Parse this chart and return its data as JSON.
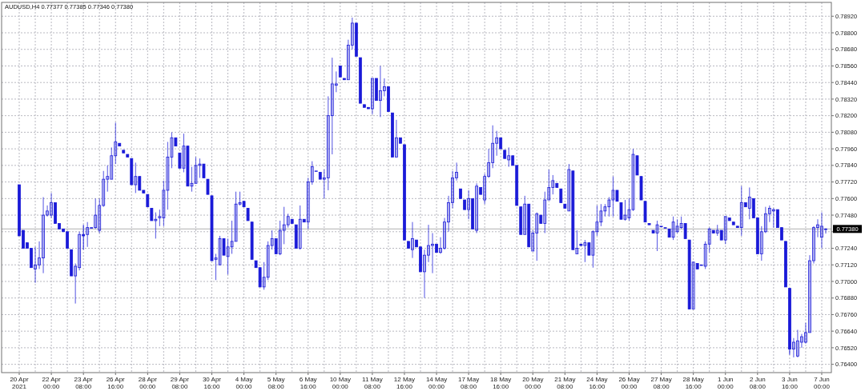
{
  "chart_data": {
    "type": "candlestick",
    "title": "AUDUSD,H4 0.77377 0.77385 0.77346 0.77380",
    "categories": [
      "20 Apr 2021",
      null,
      null,
      null,
      null,
      null,
      null,
      null,
      "22 Apr 00:00",
      null,
      null,
      null,
      null,
      null,
      null,
      null,
      "23 Apr 08:00",
      null,
      null,
      null,
      null,
      null,
      null,
      null,
      "26 Apr 16:00",
      null,
      null,
      null,
      null,
      null,
      null,
      null,
      "28 Apr 00:00",
      null,
      null,
      null,
      null,
      null,
      null,
      null,
      "29 Apr 08:00",
      null,
      null,
      null,
      null,
      null,
      null,
      null,
      "30 Apr 16:00",
      null,
      null,
      null,
      null,
      null,
      null,
      null,
      "4 May 00:00",
      null,
      null,
      null,
      null,
      null,
      null,
      null,
      "5 May 08:00",
      null,
      null,
      null,
      null,
      null,
      null,
      null,
      "6 May 16:00",
      null,
      null,
      null,
      null,
      null,
      null,
      null,
      "10 May 00:00",
      null,
      null,
      null,
      null,
      null,
      null,
      null,
      "11 May 08:00",
      null,
      null,
      null,
      null,
      null,
      null,
      null,
      "12 May 16:00",
      null,
      null,
      null,
      null,
      null,
      null,
      null,
      "14 May 00:00",
      null,
      null,
      null,
      null,
      null,
      null,
      null,
      "17 May 08:00",
      null,
      null,
      null,
      null,
      null,
      null,
      null,
      "18 May 16:00",
      null,
      null,
      null,
      null,
      null,
      null,
      null,
      "20 May 00:00",
      null,
      null,
      null,
      null,
      null,
      null,
      null,
      "21 May 08:00",
      null,
      null,
      null,
      null,
      null,
      null,
      null,
      "24 May 16:00",
      null,
      null,
      null,
      null,
      null,
      null,
      null,
      "26 May 00:00",
      null,
      null,
      null,
      null,
      null,
      null,
      null,
      "27 May 08:00",
      null,
      null,
      null,
      null,
      null,
      null,
      null,
      "28 May 16:00",
      null,
      null,
      null,
      null,
      null,
      null,
      null,
      "1 Jun 00:00",
      null,
      null,
      null,
      null,
      null,
      null,
      null,
      "2 Jun 08:00",
      null,
      null,
      null,
      null,
      null,
      null,
      null,
      "3 Jun 16:00",
      null,
      null,
      null,
      null,
      null,
      null,
      null,
      "7 Jun 00:00",
      null
    ],
    "series": [
      {
        "color": "#1a1ad8",
        "ohlc": [
          [
            0.777,
            0.777,
            0.7733,
            0.7733
          ],
          [
            0.7737,
            0.7737,
            0.7724,
            0.7724
          ],
          [
            0.7728,
            0.7728,
            0.7724,
            0.7724
          ],
          [
            0.7724,
            0.7724,
            0.771,
            0.771
          ],
          [
            0.7709,
            0.7725,
            0.7699,
            0.7712
          ],
          [
            0.7712,
            0.7729,
            0.7709,
            0.7717
          ],
          [
            0.7717,
            0.7761,
            0.7706,
            0.7748
          ],
          [
            0.7748,
            0.7755,
            0.7747,
            0.7751
          ],
          [
            0.7748,
            0.7764,
            0.7746,
            0.7757
          ],
          [
            0.7757,
            0.7757,
            0.7742,
            0.7742
          ],
          [
            0.7742,
            0.7742,
            0.7738,
            0.7738
          ],
          [
            0.7738,
            0.7738,
            0.7736,
            0.7736
          ],
          [
            0.7736,
            0.7736,
            0.7724,
            0.7724
          ],
          [
            0.7723,
            0.7723,
            0.7704,
            0.7704
          ],
          [
            0.7704,
            0.7713,
            0.7684,
            0.7711
          ],
          [
            0.771,
            0.7736,
            0.7708,
            0.7734
          ],
          [
            0.7734,
            0.7741,
            0.7723,
            0.7733
          ],
          [
            0.7734,
            0.7743,
            0.7725,
            0.7739
          ],
          [
            0.7739,
            0.7739,
            0.7739,
            0.7739
          ],
          [
            0.7739,
            0.776,
            0.7738,
            0.7748
          ],
          [
            0.7737,
            0.776,
            0.7735,
            0.7755
          ],
          [
            0.7755,
            0.778,
            0.7754,
            0.7774
          ],
          [
            0.7774,
            0.7784,
            0.7765,
            0.7776
          ],
          [
            0.7774,
            0.7797,
            0.7774,
            0.7791
          ],
          [
            0.7791,
            0.7815,
            0.7785,
            0.7801
          ],
          [
            0.78,
            0.78,
            0.7798,
            0.7798
          ],
          [
            0.7795,
            0.7795,
            0.7793,
            0.7793
          ],
          [
            0.7792,
            0.7792,
            0.779,
            0.779
          ],
          [
            0.7789,
            0.7789,
            0.777,
            0.777
          ],
          [
            0.777,
            0.7786,
            0.7764,
            0.7776
          ],
          [
            0.7776,
            0.7776,
            0.7766,
            0.7766
          ],
          [
            0.7766,
            0.7766,
            0.7764,
            0.7764
          ],
          [
            0.7763,
            0.7763,
            0.7754,
            0.7754
          ],
          [
            0.7753,
            0.7753,
            0.7744,
            0.7744
          ],
          [
            0.7744,
            0.775,
            0.7731,
            0.7745
          ],
          [
            0.7746,
            0.7752,
            0.774,
            0.7747
          ],
          [
            0.7746,
            0.7773,
            0.774,
            0.7766
          ],
          [
            0.7766,
            0.7801,
            0.7752,
            0.779
          ],
          [
            0.779,
            0.7808,
            0.7782,
            0.7804
          ],
          [
            0.7804,
            0.7804,
            0.7798,
            0.7798
          ],
          [
            0.7793,
            0.7793,
            0.7782,
            0.7782
          ],
          [
            0.7782,
            0.7807,
            0.7779,
            0.7798
          ],
          [
            0.7798,
            0.7798,
            0.7769,
            0.7769
          ],
          [
            0.7769,
            0.7783,
            0.7765,
            0.7771
          ],
          [
            0.7771,
            0.779,
            0.7771,
            0.7784
          ],
          [
            0.7784,
            0.7789,
            0.7775,
            0.7785
          ],
          [
            0.7785,
            0.7785,
            0.7775,
            0.7775
          ],
          [
            0.7774,
            0.7774,
            0.7763,
            0.7763
          ],
          [
            0.7762,
            0.7762,
            0.7715,
            0.7715
          ],
          [
            0.7716,
            0.772,
            0.7701,
            0.7717
          ],
          [
            0.7712,
            0.7733,
            0.7712,
            0.7731
          ],
          [
            0.7731,
            0.7731,
            0.7719,
            0.7719
          ],
          [
            0.7718,
            0.7731,
            0.7705,
            0.7725
          ],
          [
            0.7725,
            0.7744,
            0.772,
            0.7729
          ],
          [
            0.7729,
            0.7765,
            0.7729,
            0.7756
          ],
          [
            0.7756,
            0.7765,
            0.7755,
            0.7757
          ],
          [
            0.7758,
            0.7758,
            0.7754,
            0.7754
          ],
          [
            0.7753,
            0.7753,
            0.7744,
            0.7744
          ],
          [
            0.7743,
            0.7743,
            0.7716,
            0.7716
          ],
          [
            0.7715,
            0.7715,
            0.771,
            0.771
          ],
          [
            0.771,
            0.771,
            0.7696,
            0.7696
          ],
          [
            0.7696,
            0.7714,
            0.7694,
            0.7703
          ],
          [
            0.7703,
            0.7729,
            0.7701,
            0.7726
          ],
          [
            0.7726,
            0.7737,
            0.7723,
            0.7731
          ],
          [
            0.7731,
            0.7731,
            0.772,
            0.772
          ],
          [
            0.772,
            0.7744,
            0.7719,
            0.7737
          ],
          [
            0.7737,
            0.7754,
            0.7727,
            0.7741
          ],
          [
            0.7741,
            0.7749,
            0.7739,
            0.7747
          ],
          [
            0.7745,
            0.7745,
            0.7742,
            0.7742
          ],
          [
            0.7741,
            0.7741,
            0.7724,
            0.7724
          ],
          [
            0.7724,
            0.7755,
            0.7723,
            0.7745
          ],
          [
            0.7745,
            0.7745,
            0.7743,
            0.7743
          ],
          [
            0.7743,
            0.7775,
            0.7738,
            0.7772
          ],
          [
            0.7772,
            0.7787,
            0.777,
            0.7783
          ],
          [
            0.778,
            0.778,
            0.778,
            0.778
          ],
          [
            0.7779,
            0.7779,
            0.7774,
            0.7774
          ],
          [
            0.7774,
            0.7781,
            0.776,
            0.7775
          ],
          [
            0.7775,
            0.7834,
            0.7766,
            0.782
          ],
          [
            0.782,
            0.7862,
            0.7792,
            0.7843
          ],
          [
            0.7842,
            0.7852,
            0.7837,
            0.7843
          ],
          [
            0.7856,
            0.7856,
            0.7848,
            0.7848
          ],
          [
            0.7847,
            0.7847,
            0.7846,
            0.7846
          ],
          [
            0.7846,
            0.7875,
            0.7846,
            0.7871
          ],
          [
            0.7871,
            0.7891,
            0.7868,
            0.7887
          ],
          [
            0.7887,
            0.7887,
            0.7863,
            0.7863
          ],
          [
            0.7862,
            0.7862,
            0.7829,
            0.7829
          ],
          [
            0.7828,
            0.7828,
            0.7826,
            0.7826
          ],
          [
            0.7826,
            0.7826,
            0.7825,
            0.7825
          ],
          [
            0.7825,
            0.7847,
            0.7821,
            0.7847
          ],
          [
            0.7847,
            0.7847,
            0.7831,
            0.7831
          ],
          [
            0.7831,
            0.7856,
            0.7819,
            0.7838
          ],
          [
            0.7838,
            0.7847,
            0.7834,
            0.7841
          ],
          [
            0.7841,
            0.7841,
            0.7823,
            0.7823
          ],
          [
            0.7822,
            0.7822,
            0.779,
            0.779
          ],
          [
            0.779,
            0.7817,
            0.779,
            0.7804
          ],
          [
            0.7804,
            0.7804,
            0.78,
            0.78
          ],
          [
            0.7799,
            0.7799,
            0.773,
            0.773
          ],
          [
            0.7729,
            0.7729,
            0.7724,
            0.7724
          ],
          [
            0.7723,
            0.7743,
            0.7717,
            0.7731
          ],
          [
            0.773,
            0.773,
            0.7725,
            0.7725
          ],
          [
            0.7725,
            0.7725,
            0.7707,
            0.7707
          ],
          [
            0.7707,
            0.7723,
            0.7688,
            0.7719
          ],
          [
            0.7719,
            0.7741,
            0.7714,
            0.7726
          ],
          [
            0.7726,
            0.7735,
            0.7706,
            0.7727
          ],
          [
            0.7727,
            0.7727,
            0.7721,
            0.7721
          ],
          [
            0.7721,
            0.7732,
            0.772,
            0.7724
          ],
          [
            0.7724,
            0.7746,
            0.7723,
            0.7743
          ],
          [
            0.7743,
            0.7762,
            0.7736,
            0.7757
          ],
          [
            0.7757,
            0.778,
            0.7753,
            0.7775
          ],
          [
            0.7775,
            0.7786,
            0.7773,
            0.7779
          ],
          [
            0.7767,
            0.7767,
            0.776,
            0.776
          ],
          [
            0.7759,
            0.7759,
            0.7752,
            0.7752
          ],
          [
            0.7752,
            0.7766,
            0.7745,
            0.776
          ],
          [
            0.776,
            0.776,
            0.7738,
            0.7738
          ],
          [
            0.7737,
            0.7771,
            0.7735,
            0.7769
          ],
          [
            0.7768,
            0.7768,
            0.7763,
            0.7763
          ],
          [
            0.7759,
            0.7778,
            0.7756,
            0.7776
          ],
          [
            0.7776,
            0.7796,
            0.7775,
            0.7786
          ],
          [
            0.7786,
            0.7813,
            0.7782,
            0.78
          ],
          [
            0.78,
            0.7809,
            0.7791,
            0.7804
          ],
          [
            0.7804,
            0.7804,
            0.7796,
            0.7796
          ],
          [
            0.7795,
            0.7795,
            0.7789,
            0.7789
          ],
          [
            0.7788,
            0.7797,
            0.7783,
            0.7791
          ],
          [
            0.7791,
            0.7791,
            0.7784,
            0.7784
          ],
          [
            0.7784,
            0.7784,
            0.7755,
            0.7755
          ],
          [
            0.7754,
            0.7754,
            0.7734,
            0.7734
          ],
          [
            0.7734,
            0.7762,
            0.7734,
            0.7756
          ],
          [
            0.7756,
            0.7756,
            0.7725,
            0.7725
          ],
          [
            0.7722,
            0.7737,
            0.7722,
            0.7735
          ],
          [
            0.7735,
            0.775,
            0.7715,
            0.7749
          ],
          [
            0.7748,
            0.7748,
            0.7742,
            0.7742
          ],
          [
            0.7742,
            0.7765,
            0.7735,
            0.7759
          ],
          [
            0.7759,
            0.7781,
            0.7759,
            0.7768
          ],
          [
            0.7768,
            0.7777,
            0.7763,
            0.7773
          ],
          [
            0.7771,
            0.7771,
            0.7768,
            0.7768
          ],
          [
            0.7767,
            0.7767,
            0.7757,
            0.7757
          ],
          [
            0.7756,
            0.7756,
            0.7753,
            0.7753
          ],
          [
            0.7751,
            0.7785,
            0.7751,
            0.7781
          ],
          [
            0.778,
            0.778,
            0.7723,
            0.7723
          ],
          [
            0.772,
            0.7737,
            0.772,
            0.7724
          ],
          [
            0.7727,
            0.7727,
            0.7726,
            0.7726
          ],
          [
            0.7726,
            0.773,
            0.7714,
            0.7728
          ],
          [
            0.7728,
            0.7728,
            0.7719,
            0.7719
          ],
          [
            0.7719,
            0.7737,
            0.771,
            0.7736
          ],
          [
            0.7736,
            0.7755,
            0.7733,
            0.7743
          ],
          [
            0.7743,
            0.7756,
            0.774,
            0.7751
          ],
          [
            0.7751,
            0.7756,
            0.7747,
            0.7754
          ],
          [
            0.7754,
            0.7761,
            0.7747,
            0.7759
          ],
          [
            0.7759,
            0.7776,
            0.7747,
            0.7766
          ],
          [
            0.7766,
            0.7766,
            0.7758,
            0.7758
          ],
          [
            0.7757,
            0.7757,
            0.7745,
            0.7745
          ],
          [
            0.7745,
            0.7759,
            0.7744,
            0.7748
          ],
          [
            0.7746,
            0.776,
            0.7744,
            0.7752
          ],
          [
            0.7752,
            0.7796,
            0.7751,
            0.7792
          ],
          [
            0.7791,
            0.7791,
            0.7777,
            0.7777
          ],
          [
            0.7776,
            0.7776,
            0.7759,
            0.7759
          ],
          [
            0.7758,
            0.7758,
            0.7743,
            0.7743
          ],
          [
            0.7742,
            0.7742,
            0.7741,
            0.7741
          ],
          [
            0.7737,
            0.7737,
            0.7735,
            0.7735
          ],
          [
            0.7735,
            0.7744,
            0.7722,
            0.7741
          ],
          [
            0.774,
            0.774,
            0.774,
            0.774
          ],
          [
            0.7739,
            0.7739,
            0.7739,
            0.7739
          ],
          [
            0.7738,
            0.7738,
            0.7732,
            0.7732
          ],
          [
            0.7732,
            0.7747,
            0.773,
            0.7743
          ],
          [
            0.7736,
            0.7745,
            0.7735,
            0.774
          ],
          [
            0.7739,
            0.7747,
            0.7738,
            0.7742
          ],
          [
            0.7742,
            0.7742,
            0.7731,
            0.7731
          ],
          [
            0.773,
            0.773,
            0.768,
            0.768
          ],
          [
            0.768,
            0.7714,
            0.768,
            0.7714
          ],
          [
            0.7713,
            0.7713,
            0.7709,
            0.7709
          ],
          [
            0.7712,
            0.7712,
            0.7712,
            0.7712
          ],
          [
            0.7711,
            0.7729,
            0.7709,
            0.7727
          ],
          [
            0.7727,
            0.7739,
            0.7721,
            0.7738
          ],
          [
            0.7737,
            0.7737,
            0.7735,
            0.7735
          ],
          [
            0.7735,
            0.7741,
            0.7733,
            0.7737
          ],
          [
            0.7737,
            0.7737,
            0.773,
            0.773
          ],
          [
            0.773,
            0.7747,
            0.7727,
            0.7747
          ],
          [
            0.7746,
            0.7746,
            0.7744,
            0.7744
          ],
          [
            0.7743,
            0.7743,
            0.7741,
            0.7741
          ],
          [
            0.774,
            0.774,
            0.7739,
            0.7739
          ],
          [
            0.7739,
            0.7769,
            0.7733,
            0.7757
          ],
          [
            0.7757,
            0.7757,
            0.7754,
            0.7754
          ],
          [
            0.7753,
            0.7768,
            0.7745,
            0.7761
          ],
          [
            0.776,
            0.776,
            0.7746,
            0.7746
          ],
          [
            0.7746,
            0.7746,
            0.772,
            0.772
          ],
          [
            0.772,
            0.774,
            0.7715,
            0.7736
          ],
          [
            0.7736,
            0.7754,
            0.7735,
            0.7749
          ],
          [
            0.7749,
            0.7755,
            0.7743,
            0.7753
          ],
          [
            0.7751,
            0.7753,
            0.7739,
            0.7752
          ],
          [
            0.7752,
            0.7752,
            0.7739,
            0.7739
          ],
          [
            0.7739,
            0.7739,
            0.773,
            0.773
          ],
          [
            0.7729,
            0.7729,
            0.7696,
            0.7696
          ],
          [
            0.7695,
            0.7695,
            0.7647,
            0.7651
          ],
          [
            0.7651,
            0.7659,
            0.7645,
            0.7656
          ],
          [
            0.7646,
            0.7665,
            0.7645,
            0.7657
          ],
          [
            0.7656,
            0.7662,
            0.7652,
            0.766
          ],
          [
            0.7656,
            0.767,
            0.7655,
            0.7663
          ],
          [
            0.7663,
            0.7719,
            0.7663,
            0.7715
          ],
          [
            0.7715,
            0.774,
            0.7713,
            0.7739
          ],
          [
            0.7739,
            0.7745,
            0.7732,
            0.7741
          ],
          [
            0.7732,
            0.775,
            0.7724,
            0.774
          ],
          [
            0.77377,
            0.77385,
            0.77346,
            0.7738
          ]
        ]
      }
    ],
    "ylim": [
      0.7634,
      0.7902
    ],
    "yticks": [
      {
        "value": 0.764,
        "label": "0.76400"
      },
      {
        "value": 0.7652,
        "label": "0.76520"
      },
      {
        "value": 0.7664,
        "label": "0.76640"
      },
      {
        "value": 0.7676,
        "label": "0.76760"
      },
      {
        "value": 0.7688,
        "label": "0.76880"
      },
      {
        "value": 0.77,
        "label": "0.77000"
      },
      {
        "value": 0.7712,
        "label": "0.77120"
      },
      {
        "value": 0.7724,
        "label": "0.77240"
      },
      {
        "value": 0.7736,
        "label": null
      },
      {
        "value": 0.7748,
        "label": "0.77480"
      },
      {
        "value": 0.776,
        "label": "0.77600"
      },
      {
        "value": 0.7772,
        "label": "0.77720"
      },
      {
        "value": 0.7784,
        "label": "0.77840"
      },
      {
        "value": 0.7796,
        "label": "0.77960"
      },
      {
        "value": 0.7808,
        "label": "0.78080"
      },
      {
        "value": 0.782,
        "label": "0.78200"
      },
      {
        "value": 0.7832,
        "label": "0.78320"
      },
      {
        "value": 0.7844,
        "label": "0.78440"
      },
      {
        "value": 0.7856,
        "label": "0.78560"
      },
      {
        "value": 0.7868,
        "label": "0.78680"
      },
      {
        "value": 0.788,
        "label": "0.78800"
      },
      {
        "value": 0.7892,
        "label": "0.78920"
      }
    ],
    "ref_lines": [
      {
        "axis": "y",
        "value": 0.7738,
        "label": "0.77380",
        "color": "#c0c0c0"
      }
    ],
    "grid": true
  }
}
